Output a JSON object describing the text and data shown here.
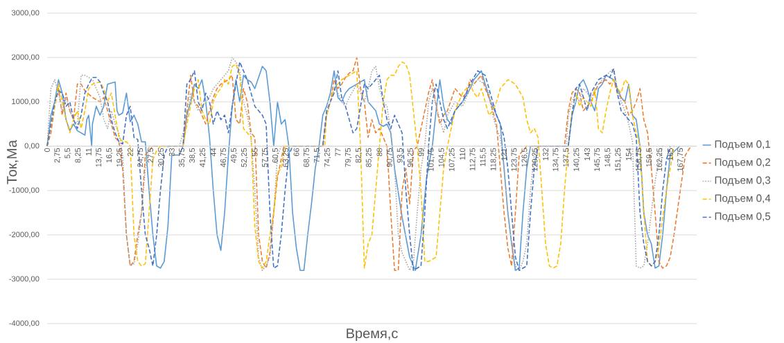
{
  "chart_data": {
    "type": "line",
    "xlabel": "Время,с",
    "ylabel": "Ток,Ма",
    "xlim": [
      0,
      172
    ],
    "ylim": [
      -4000,
      3000
    ],
    "yticks": [
      {
        "value": -4000,
        "label": "-4000,00"
      },
      {
        "value": -3000,
        "label": "-3000,00"
      },
      {
        "value": -2000,
        "label": "-2000,00"
      },
      {
        "value": -1000,
        "label": "-1000,00"
      },
      {
        "value": 0,
        "label": "0,00"
      },
      {
        "value": 1000,
        "label": "1000,00"
      },
      {
        "value": 2000,
        "label": "2000,00"
      },
      {
        "value": 3000,
        "label": "3000,00"
      }
    ],
    "xticks": [
      {
        "value": 0,
        "label": "0"
      },
      {
        "value": 2.75,
        "label": "2,75"
      },
      {
        "value": 5.5,
        "label": "5,5"
      },
      {
        "value": 8.25,
        "label": "8,25"
      },
      {
        "value": 11,
        "label": "11"
      },
      {
        "value": 13.75,
        "label": "13,75"
      },
      {
        "value": 16.5,
        "label": "16,5"
      },
      {
        "value": 19.25,
        "label": "19,25"
      },
      {
        "value": 22,
        "label": "22"
      },
      {
        "value": 24.75,
        "label": "24,75"
      },
      {
        "value": 27.5,
        "label": "27,5"
      },
      {
        "value": 30.25,
        "label": "30,25"
      },
      {
        "value": 33,
        "label": "33"
      },
      {
        "value": 35.75,
        "label": "35,75"
      },
      {
        "value": 38.5,
        "label": "38,5"
      },
      {
        "value": 41.25,
        "label": "41,25"
      },
      {
        "value": 44,
        "label": "44"
      },
      {
        "value": 46.75,
        "label": "46,75"
      },
      {
        "value": 49.5,
        "label": "49,5"
      },
      {
        "value": 52.25,
        "label": "52,25"
      },
      {
        "value": 55,
        "label": "55"
      },
      {
        "value": 57.75,
        "label": "57,75"
      },
      {
        "value": 60.5,
        "label": "60,5"
      },
      {
        "value": 63.25,
        "label": "63,25"
      },
      {
        "value": 66,
        "label": "66"
      },
      {
        "value": 68.75,
        "label": "68,75"
      },
      {
        "value": 71.5,
        "label": "71,5"
      },
      {
        "value": 74.25,
        "label": "74,25"
      },
      {
        "value": 77,
        "label": "77"
      },
      {
        "value": 79.75,
        "label": "79,75"
      },
      {
        "value": 82.5,
        "label": "82,5"
      },
      {
        "value": 85.25,
        "label": "85,25"
      },
      {
        "value": 88,
        "label": "88"
      },
      {
        "value": 90.75,
        "label": "90,75"
      },
      {
        "value": 93.5,
        "label": "93,5"
      },
      {
        "value": 96.25,
        "label": "96,25"
      },
      {
        "value": 99,
        "label": "99"
      },
      {
        "value": 101.75,
        "label": "101,75"
      },
      {
        "value": 104.5,
        "label": "104,5"
      },
      {
        "value": 107.25,
        "label": "107,25"
      },
      {
        "value": 110,
        "label": "110"
      },
      {
        "value": 112.75,
        "label": "112,75"
      },
      {
        "value": 115.5,
        "label": "115,5"
      },
      {
        "value": 118.25,
        "label": "118,25"
      },
      {
        "value": 121,
        "label": "121"
      },
      {
        "value": 123.75,
        "label": "123,75"
      },
      {
        "value": 126.5,
        "label": "126,5"
      },
      {
        "value": 129.25,
        "label": "129,25"
      },
      {
        "value": 132,
        "label": "132"
      },
      {
        "value": 134.75,
        "label": "134,75"
      },
      {
        "value": 137.5,
        "label": "137,5"
      },
      {
        "value": 140.25,
        "label": "140,25"
      },
      {
        "value": 143,
        "label": "143"
      },
      {
        "value": 145.75,
        "label": "145,75"
      },
      {
        "value": 148.5,
        "label": "148,5"
      },
      {
        "value": 151.25,
        "label": "151,25"
      },
      {
        "value": 154,
        "label": "154"
      },
      {
        "value": 156.75,
        "label": "156,75"
      },
      {
        "value": 159.5,
        "label": "159,5"
      },
      {
        "value": 162.25,
        "label": "162,25"
      },
      {
        "value": 165,
        "label": "165"
      },
      {
        "value": 167.75,
        "label": "167,75"
      }
    ],
    "grid": "y",
    "legend": "right",
    "marker": "none",
    "series": [
      {
        "name": "Подъем 0,1",
        "color": "#5b9bd5",
        "line_style": "solid",
        "x": [
          0,
          1,
          2,
          3,
          4,
          5,
          6,
          7,
          8,
          9,
          10,
          10.5,
          11,
          11.8,
          12,
          13,
          14,
          15,
          16,
          18,
          18.5,
          19,
          20,
          21,
          22,
          23,
          24,
          25,
          26,
          27,
          28,
          29,
          30,
          31,
          32,
          33,
          35,
          36,
          37,
          38,
          39,
          40,
          41,
          42,
          43,
          44,
          45,
          46,
          47,
          48,
          49,
          50,
          51,
          52,
          53,
          54,
          55,
          57,
          58,
          59,
          60,
          61,
          62,
          63,
          64,
          65,
          66,
          67,
          68,
          69,
          70,
          71,
          72,
          73,
          74,
          75,
          76,
          77,
          78,
          79,
          80,
          82,
          84,
          85,
          87,
          88,
          89,
          90,
          91,
          92,
          94,
          96,
          97.5,
          99,
          100.5,
          102,
          103,
          104,
          105,
          106,
          107,
          108,
          110,
          112,
          113,
          115,
          117,
          119,
          120,
          121,
          122,
          123,
          124,
          125,
          126,
          127,
          128,
          129.5,
          138,
          139,
          140,
          141,
          142,
          143,
          144,
          145,
          146,
          147,
          148,
          150,
          151,
          152,
          153,
          154,
          155,
          156,
          157,
          158,
          159,
          160,
          161,
          162,
          163,
          164,
          165,
          167.5
        ],
        "values": [
          0,
          700,
          1000,
          1500,
          1200,
          600,
          350,
          500,
          350,
          300,
          250,
          600,
          700,
          0,
          500,
          900,
          700,
          900,
          1400,
          1450,
          800,
          700,
          750,
          1200,
          550,
          700,
          500,
          100,
          100,
          -1000,
          -2000,
          -2700,
          -2750,
          -2600,
          -1800,
          -200,
          -200,
          0,
          700,
          1000,
          1400,
          1300,
          1500,
          1000,
          200,
          -1000,
          -2000,
          -2350,
          -1500,
          -200,
          900,
          1500,
          1000,
          1600,
          1500,
          1450,
          1300,
          1800,
          1700,
          1000,
          0,
          1000,
          500,
          600,
          0,
          -1500,
          -2300,
          -2800,
          -2800,
          -2000,
          -1300,
          -500,
          0,
          700,
          900,
          1200,
          1700,
          1100,
          1000,
          1200,
          1300,
          1400,
          1500,
          1000,
          800,
          500,
          450,
          500,
          300,
          -500,
          -1600,
          -2500,
          -2800,
          -2000,
          -700,
          0,
          800,
          1500,
          900,
          600,
          500,
          800,
          1000,
          1300,
          1500,
          1700,
          1100,
          700,
          500,
          -500,
          -1500,
          -2200,
          -2800,
          -2750,
          -1500,
          -500,
          0,
          0,
          0,
          700,
          1000,
          1400,
          1500,
          1300,
          1000,
          800,
          1300,
          1400,
          1600,
          1500,
          1300,
          1100,
          1000,
          1400,
          700,
          600,
          0,
          -1500,
          -2000,
          -2200,
          -2750,
          -2700,
          -2000,
          -1000,
          -200,
          0
        ]
      },
      {
        "name": "Подъем 0,2",
        "color": "#ed7d31",
        "line_style": "dashed",
        "x": [
          0,
          1,
          2,
          3,
          4,
          5,
          6,
          7,
          8,
          9,
          10,
          12,
          14,
          15,
          16,
          17,
          18,
          19,
          20,
          21,
          22,
          23,
          24,
          25,
          26,
          27,
          28,
          36,
          37,
          38,
          39,
          40,
          41,
          42,
          43,
          44,
          45,
          46,
          48,
          49,
          50,
          51,
          52,
          53,
          54,
          55,
          56,
          57,
          58,
          59,
          60,
          61,
          62.7,
          73,
          74,
          75,
          76,
          77,
          78,
          79,
          80,
          81,
          82,
          83,
          84,
          85,
          86,
          87,
          88,
          89,
          90,
          91,
          92,
          93,
          94,
          95,
          96,
          97,
          98,
          101,
          102,
          103,
          104,
          105,
          106,
          108,
          109,
          110,
          111,
          112,
          113,
          114,
          115,
          116,
          117,
          118,
          119,
          120,
          121,
          122,
          123,
          124,
          125,
          126,
          127,
          137,
          138,
          139,
          140,
          141,
          142,
          143,
          144,
          145,
          146,
          148,
          149,
          150,
          151,
          152,
          153,
          154,
          155,
          156,
          157,
          158,
          159,
          160,
          161,
          162,
          163,
          164,
          165,
          166,
          167,
          168,
          169,
          170.5
        ],
        "values": [
          0,
          300,
          900,
          1300,
          700,
          1200,
          800,
          600,
          1400,
          1400,
          1250,
          1100,
          1000,
          1100,
          800,
          500,
          200,
          100,
          -500,
          -2000,
          -2700,
          -2600,
          -2000,
          -1500,
          -200,
          -100,
          0,
          0,
          800,
          1600,
          1000,
          900,
          700,
          500,
          800,
          1100,
          1300,
          1400,
          1500,
          1600,
          600,
          500,
          1300,
          1000,
          300,
          200,
          -2000,
          -2600,
          -2750,
          -2400,
          -1500,
          -700,
          0,
          0,
          700,
          1000,
          1500,
          1300,
          1400,
          1550,
          1650,
          1700,
          2000,
          1300,
          1000,
          200,
          600,
          300,
          400,
          200,
          0,
          -1500,
          -2800,
          -2800,
          -1000,
          -500,
          -1300,
          -100,
          0,
          1200,
          1500,
          900,
          500,
          700,
          800,
          1300,
          1200,
          1100,
          1200,
          1500,
          1400,
          1500,
          1600,
          1300,
          1100,
          800,
          500,
          -500,
          -1500,
          -2300,
          -2700,
          -1500,
          -200,
          -100,
          0,
          0,
          800,
          1200,
          1300,
          1200,
          800,
          900,
          1000,
          1200,
          1400,
          1500,
          1400,
          1500,
          1200,
          1100,
          1000,
          700,
          800,
          1000,
          1300,
          600,
          300,
          -500,
          -1500,
          -2600,
          -2750,
          -2700,
          -2500,
          -2000,
          -1400,
          -800,
          -200,
          0
        ]
      },
      {
        "name": "Подъем 0,3",
        "color": "#a5a5a5",
        "line_style": "dotted",
        "x": [
          0,
          1,
          2,
          3,
          4,
          5,
          6,
          7,
          8,
          9,
          10,
          12,
          13,
          14,
          15,
          16,
          17,
          18,
          19,
          20,
          21,
          22,
          23,
          24,
          25,
          26,
          27,
          35,
          37,
          38,
          39,
          40,
          42,
          43,
          44,
          46,
          48,
          49,
          50,
          51,
          52,
          53,
          54,
          55,
          56,
          57,
          58,
          59,
          60,
          61,
          62,
          73,
          74,
          75,
          76,
          77,
          78,
          79,
          80,
          82,
          84,
          85,
          86,
          87,
          88,
          89,
          90,
          91,
          92,
          93,
          94,
          95,
          96,
          97,
          98,
          99,
          100,
          101,
          102,
          103,
          104,
          105,
          106,
          108,
          110,
          112,
          114,
          116,
          117,
          118,
          119,
          120,
          121,
          122,
          123,
          124,
          125,
          126,
          127,
          128,
          129,
          130,
          137.5,
          138,
          139,
          140,
          141,
          142,
          144,
          146,
          148,
          150,
          151,
          152,
          153,
          154,
          155,
          156,
          157,
          158,
          159,
          160,
          161,
          162,
          163
        ],
        "values": [
          0,
          1300,
          1500,
          1200,
          800,
          1100,
          800,
          600,
          500,
          1600,
          1600,
          1500,
          1300,
          1100,
          600,
          400,
          800,
          500,
          300,
          -200,
          -2000,
          -2700,
          -2650,
          -2200,
          -1500,
          -500,
          0,
          0,
          600,
          1200,
          1000,
          800,
          1000,
          1100,
          1300,
          1500,
          1700,
          2000,
          1900,
          1700,
          1000,
          700,
          200,
          -1000,
          -2500,
          -2800,
          -2700,
          -2500,
          -1500,
          -200,
          0,
          0,
          700,
          1000,
          1300,
          1200,
          1000,
          900,
          1100,
          1400,
          1000,
          1300,
          1700,
          1800,
          1300,
          1000,
          900,
          300,
          -500,
          -2000,
          -2400,
          -2600,
          -2800,
          -2600,
          -1500,
          -500,
          0,
          1000,
          1300,
          900,
          600,
          300,
          700,
          1000,
          900,
          1300,
          1500,
          1400,
          1200,
          700,
          400,
          200,
          -500,
          -1500,
          -2200,
          -2700,
          -2800,
          -2600,
          -2200,
          -1000,
          -200,
          0,
          0,
          700,
          1000,
          1200,
          1000,
          1300,
          1100,
          1400,
          1600,
          1750,
          1300,
          1000,
          800,
          500,
          100,
          -2700,
          -2750,
          -2700,
          -2200,
          -1500,
          -800,
          -300,
          0
        ]
      },
      {
        "name": "Подъем 0,4",
        "color": "#ffc000",
        "line_style": "dashed",
        "x": [
          0,
          1,
          2,
          3,
          4,
          5,
          6,
          7,
          8,
          9,
          10,
          11,
          12,
          14,
          15,
          16,
          17,
          18,
          19,
          20,
          21,
          22,
          23,
          24,
          25,
          26,
          27,
          28,
          29,
          30,
          36,
          37,
          38,
          39,
          40,
          41,
          42,
          43,
          44,
          45,
          46,
          47,
          48,
          49,
          50,
          51,
          52,
          53,
          54,
          55,
          56,
          57,
          58,
          59,
          60,
          61,
          62,
          63,
          73.5,
          74,
          75,
          76,
          77,
          78,
          80,
          82,
          83,
          84,
          85,
          86,
          87,
          88,
          89,
          90,
          91,
          92,
          93,
          94,
          95,
          96,
          97,
          98,
          99,
          100,
          101,
          103,
          104,
          105,
          106,
          108,
          109,
          110,
          111,
          112,
          113,
          114,
          115,
          116,
          117,
          118,
          119,
          120,
          122,
          124,
          126,
          127,
          128,
          129,
          130,
          131,
          132,
          133,
          134,
          135,
          136,
          137,
          138,
          139,
          140,
          141,
          142,
          143,
          144,
          145,
          146,
          147,
          148,
          149,
          150,
          151,
          152,
          153,
          154,
          155,
          156,
          157,
          158,
          159,
          160,
          161,
          162,
          163,
          164,
          165,
          166
        ],
        "values": [
          0,
          500,
          900,
          1400,
          1000,
          600,
          300,
          600,
          800,
          400,
          800,
          1300,
          1400,
          1450,
          1300,
          1000,
          1200,
          700,
          200,
          100,
          100,
          0,
          -2000,
          -2600,
          -2700,
          -2650,
          -1500,
          -300,
          -100,
          0,
          0,
          500,
          900,
          1300,
          1500,
          800,
          600,
          500,
          1000,
          1200,
          1300,
          1500,
          1400,
          1800,
          1850,
          1600,
          400,
          300,
          200,
          -1800,
          -2600,
          -2750,
          -2600,
          -2000,
          -1500,
          -600,
          -500,
          0,
          0,
          700,
          1000,
          1300,
          1400,
          1500,
          1600,
          1700,
          0,
          -2750,
          -2200,
          -2000,
          -1000,
          0,
          1000,
          1500,
          1600,
          1600,
          1800,
          1900,
          1850,
          1600,
          800,
          0,
          -1000,
          -2600,
          -2600,
          -2500,
          -1500,
          -500,
          0,
          800,
          1000,
          1200,
          1300,
          1400,
          1200,
          1100,
          1300,
          1000,
          700,
          800,
          1000,
          1300,
          1500,
          1400,
          1100,
          600,
          300,
          400,
          200,
          -1000,
          -2200,
          -2700,
          -2750,
          -2700,
          -2200,
          -1000,
          0,
          800,
          1200,
          900,
          1100,
          1000,
          900,
          1300,
          400,
          300,
          800,
          1200,
          1500,
          1300,
          1200,
          1500,
          1400,
          700,
          300,
          0,
          -1500,
          -2600,
          -2700,
          -2600,
          -2300,
          -1600,
          -1000,
          -500,
          0
        ]
      },
      {
        "name": "Подъем 0,5",
        "color": "#4472c4",
        "line_style": "dashed",
        "x": [
          0,
          1,
          2,
          3,
          4,
          5,
          6,
          7,
          8,
          9,
          10,
          11,
          12,
          13,
          14,
          15,
          16,
          17,
          18,
          19,
          20,
          21,
          22,
          23,
          24,
          25,
          26,
          27,
          28,
          29,
          30,
          31,
          32,
          36,
          37,
          38,
          39,
          40,
          41,
          42,
          43,
          44,
          45,
          46,
          47,
          48,
          49,
          50,
          51,
          52,
          53,
          54,
          55,
          56,
          57,
          58,
          59,
          60,
          61,
          62,
          63,
          64,
          65,
          73,
          74,
          75,
          76,
          77,
          78,
          79,
          80,
          81,
          82,
          83,
          84,
          85,
          86,
          87,
          88,
          89,
          90,
          91,
          92,
          93,
          94,
          95,
          96,
          97,
          98,
          99,
          100,
          101,
          102,
          103,
          104,
          105,
          106,
          107,
          108,
          110,
          112,
          114,
          116,
          117,
          118,
          119,
          120,
          121,
          122,
          123,
          124,
          125,
          126,
          127,
          128,
          129,
          130,
          138,
          139,
          140,
          141,
          142,
          143,
          144,
          146,
          148,
          149,
          150,
          151,
          152,
          153,
          154,
          155,
          156,
          157,
          158,
          159,
          160,
          161,
          162,
          163,
          164,
          165
        ],
        "values": [
          0,
          500,
          1000,
          1250,
          1200,
          900,
          1000,
          600,
          400,
          700,
          1200,
          1400,
          1550,
          1550,
          1450,
          1200,
          1000,
          600,
          300,
          100,
          50,
          700,
          900,
          200,
          150,
          -1000,
          -2000,
          -2300,
          -2700,
          -2000,
          -1000,
          -200,
          0,
          0,
          1400,
          1500,
          1700,
          1000,
          800,
          1200,
          1000,
          500,
          800,
          600,
          700,
          300,
          900,
          1400,
          1900,
          1700,
          1500,
          1200,
          900,
          800,
          700,
          500,
          -1500,
          -2750,
          -2700,
          -2000,
          -1000,
          -200,
          0,
          0,
          800,
          1000,
          1200,
          1700,
          1100,
          900,
          600,
          300,
          400,
          900,
          1400,
          1300,
          1400,
          1500,
          1600,
          1000,
          600,
          400,
          700,
          500,
          300,
          -1000,
          -2000,
          -2800,
          -2750,
          -2700,
          -1500,
          0,
          1000,
          1400,
          1000,
          600,
          400,
          600,
          800,
          1000,
          1400,
          1700,
          1600,
          1300,
          1000,
          700,
          500,
          200,
          -500,
          -1500,
          -2500,
          -2800,
          -2750,
          -2700,
          -1500,
          -500,
          0,
          0,
          700,
          1300,
          1400,
          1100,
          800,
          1200,
          1500,
          1600,
          1550,
          1750,
          1200,
          800,
          700,
          600,
          500,
          200,
          -1500,
          -2200,
          -2600,
          -2700,
          -2600,
          -2000,
          -1000,
          -300,
          0
        ]
      }
    ]
  }
}
